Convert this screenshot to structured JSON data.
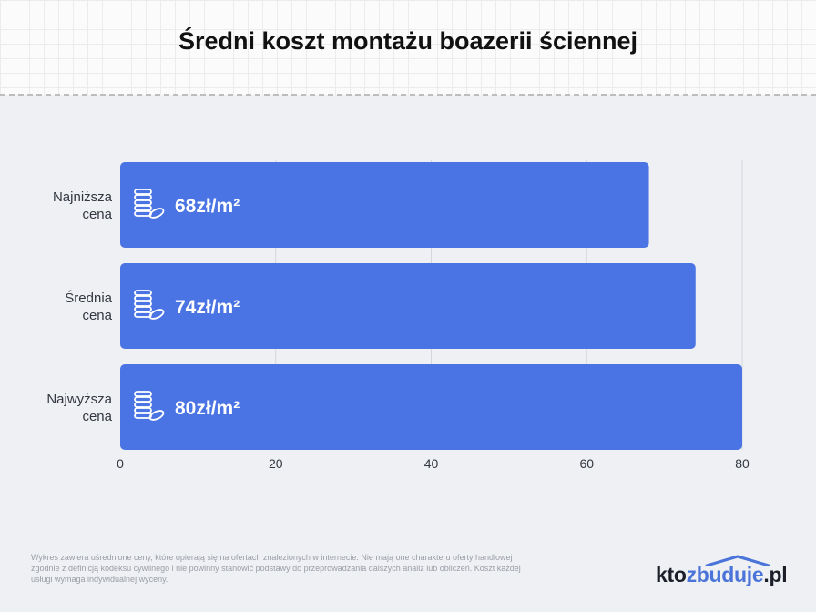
{
  "title": "Średni koszt montażu boazerii ściennej",
  "chart_data": {
    "type": "bar",
    "orientation": "horizontal",
    "categories": [
      [
        "Najniższa",
        "cena"
      ],
      [
        "Średnia",
        "cena"
      ],
      [
        "Najwyższa",
        "cena"
      ]
    ],
    "values": [
      68,
      74,
      80
    ],
    "value_labels": [
      "68zł/m²",
      "74zł/m²",
      "80zł/m²"
    ],
    "xlim": [
      0,
      80
    ],
    "xticks": [
      0,
      20,
      40,
      60,
      80
    ],
    "grid": true,
    "bar_color": "#4a74e3",
    "bar_icon": "coins-icon"
  },
  "footnote": "Wykres zawiera uśrednione ceny, które opierają się na ofertach znalezionych w internecie. Nie mają one charakteru oferty handlowej zgodnie z definicją kodeksu cywilnego i nie powinny stanowić podstawy do przeprowadzania dalszych analiz lub obliczeń. Koszt każdej usługi wymaga indywidualnej wyceny.",
  "logo": {
    "prefix": "kto",
    "accent": "zbuduje",
    "suffix": ".pl",
    "accent_color": "#4a74d9"
  }
}
